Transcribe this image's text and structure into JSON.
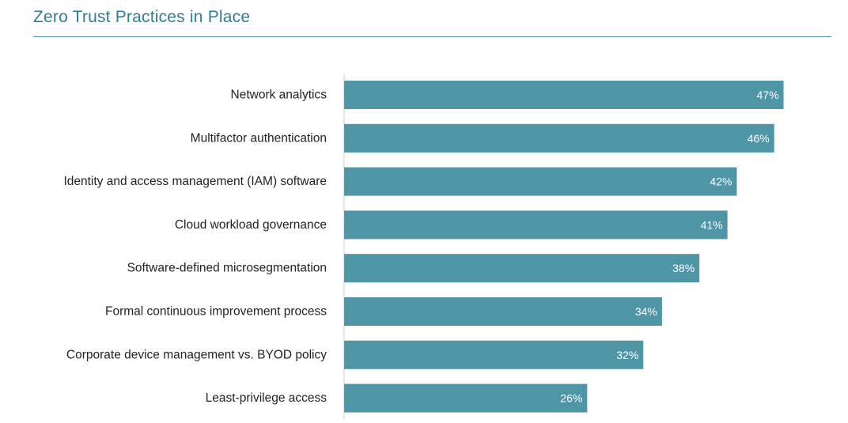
{
  "title": "Zero Trust Practices in Place",
  "colors": {
    "title": "#2f7e92",
    "bar": "#4e96a6",
    "axis": "#cfcfcf"
  },
  "chart_data": {
    "type": "bar",
    "orientation": "horizontal",
    "categories": [
      "Network analytics",
      "Multifactor authentication",
      "Identity and access management (IAM) software",
      "Cloud workload governance",
      "Software-defined microsegmentation",
      "Formal continuous improvement process",
      "Corporate device management vs. BYOD policy",
      "Least-privilege access"
    ],
    "values": [
      47,
      46,
      42,
      41,
      38,
      34,
      32,
      26
    ],
    "value_labels": [
      "47%",
      "46%",
      "42%",
      "41%",
      "38%",
      "34%",
      "32%",
      "26%"
    ],
    "unit": "%",
    "grid": false,
    "legend": "none"
  }
}
